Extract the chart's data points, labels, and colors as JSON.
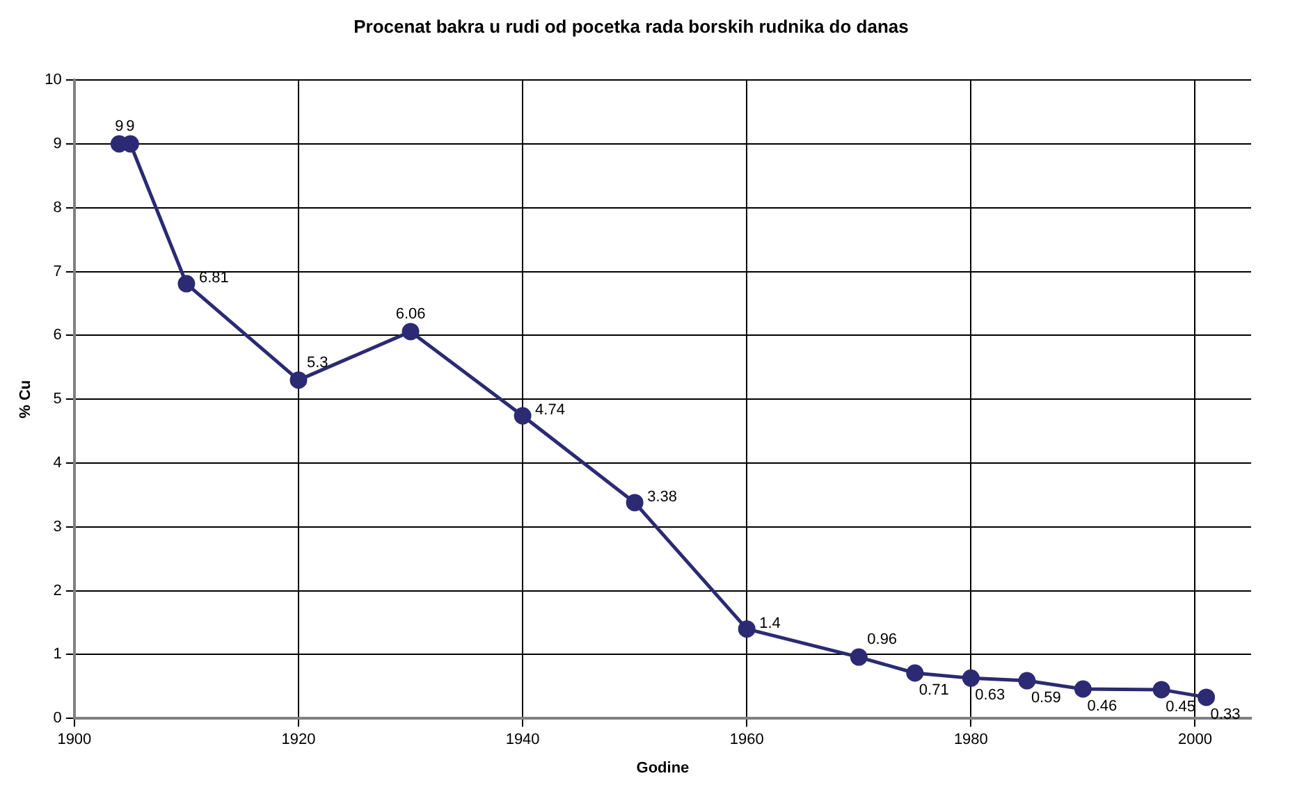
{
  "chart_data": {
    "type": "line",
    "title": "Procenat bakra u rudi od pocetka rada borskih rudnika do danas",
    "xlabel": "Godine",
    "ylabel": "% Cu",
    "x": [
      1904,
      1905,
      1910,
      1920,
      1930,
      1940,
      1950,
      1960,
      1970,
      1975,
      1980,
      1985,
      1990,
      1997,
      2001
    ],
    "series": [
      {
        "color": "#2b2a73",
        "values": [
          9,
          9,
          6.81,
          5.3,
          6.06,
          4.74,
          3.38,
          1.4,
          0.96,
          0.71,
          0.63,
          0.59,
          0.46,
          0.45,
          0.33
        ]
      }
    ],
    "xlim": [
      1900,
      2005
    ],
    "xticks": [
      1900,
      1920,
      1940,
      1960,
      1980,
      2000
    ],
    "ylim": [
      0,
      10
    ],
    "yticks": [
      0,
      1,
      2,
      3,
      4,
      5,
      6,
      7,
      8,
      9,
      10
    ],
    "grid": true,
    "legend": false,
    "marker": "circle",
    "line_style": "solid",
    "data_labels": true
  }
}
